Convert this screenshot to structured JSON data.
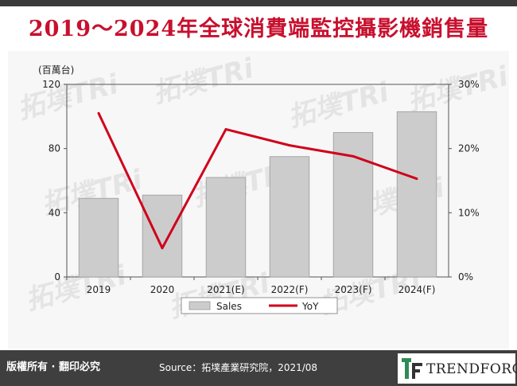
{
  "title": "2019～2024年全球消費端監控攝影機銷售量",
  "footer": {
    "rights": "版權所有 · 翻印必究",
    "source": "Source：拓墣產業研究院，2021/08",
    "logo": "TRENDFORCE"
  },
  "watermark_text": "拓墣TRi",
  "colors": {
    "title": "#c8102e",
    "bar": "#cccccc",
    "line": "#d0021b",
    "footer": "#3f3f3f"
  },
  "chart_data": {
    "type": "bar",
    "categories": [
      "2019",
      "2020",
      "2021(E)",
      "2022(F)",
      "2023(F)",
      "2024(F)"
    ],
    "series": [
      {
        "name": "Sales",
        "type": "bar",
        "axis": "left",
        "values": [
          49,
          51,
          62,
          75,
          90,
          103
        ]
      },
      {
        "name": "YoY",
        "type": "line",
        "axis": "right",
        "values": [
          25.5,
          4.5,
          23,
          20.5,
          18.8,
          15.3
        ]
      }
    ],
    "y_left": {
      "unit_label": "(百萬台)",
      "ylim": [
        0,
        120
      ],
      "ticks": [
        "0",
        "40",
        "80",
        "120"
      ]
    },
    "y_right": {
      "ylim": [
        0,
        30
      ],
      "ticks": [
        "0%",
        "10%",
        "20%",
        "30%"
      ]
    },
    "grid": false,
    "legend_position": "bottom"
  }
}
